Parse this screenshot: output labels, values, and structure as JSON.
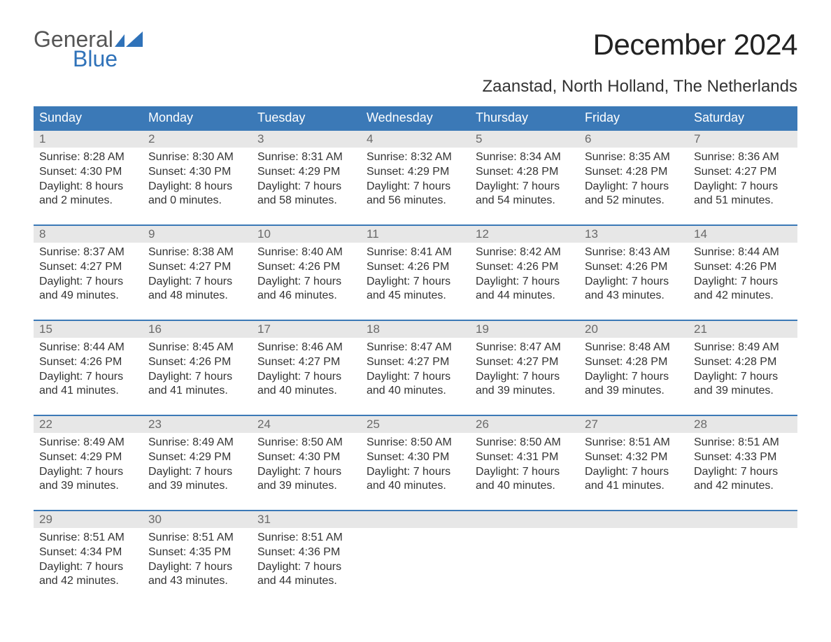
{
  "brand": {
    "line1": "General",
    "line2": "Blue"
  },
  "title": "December 2024",
  "location": "Zaanstad, North Holland, The Netherlands",
  "colors": {
    "header_bg": "#3b79b7",
    "header_text": "#ffffff",
    "daynum_bg": "#e7e7e7",
    "daynum_text": "#6a6a6a",
    "body_text": "#333333",
    "logo_gray": "#555555",
    "logo_blue": "#2f72b9",
    "week_border": "#3b79b7"
  },
  "weekdays": [
    "Sunday",
    "Monday",
    "Tuesday",
    "Wednesday",
    "Thursday",
    "Friday",
    "Saturday"
  ],
  "weeks": [
    [
      {
        "n": "1",
        "sunrise": "Sunrise: 8:28 AM",
        "sunset": "Sunset: 4:30 PM",
        "dl1": "Daylight: 8 hours",
        "dl2": "and 2 minutes."
      },
      {
        "n": "2",
        "sunrise": "Sunrise: 8:30 AM",
        "sunset": "Sunset: 4:30 PM",
        "dl1": "Daylight: 8 hours",
        "dl2": "and 0 minutes."
      },
      {
        "n": "3",
        "sunrise": "Sunrise: 8:31 AM",
        "sunset": "Sunset: 4:29 PM",
        "dl1": "Daylight: 7 hours",
        "dl2": "and 58 minutes."
      },
      {
        "n": "4",
        "sunrise": "Sunrise: 8:32 AM",
        "sunset": "Sunset: 4:29 PM",
        "dl1": "Daylight: 7 hours",
        "dl2": "and 56 minutes."
      },
      {
        "n": "5",
        "sunrise": "Sunrise: 8:34 AM",
        "sunset": "Sunset: 4:28 PM",
        "dl1": "Daylight: 7 hours",
        "dl2": "and 54 minutes."
      },
      {
        "n": "6",
        "sunrise": "Sunrise: 8:35 AM",
        "sunset": "Sunset: 4:28 PM",
        "dl1": "Daylight: 7 hours",
        "dl2": "and 52 minutes."
      },
      {
        "n": "7",
        "sunrise": "Sunrise: 8:36 AM",
        "sunset": "Sunset: 4:27 PM",
        "dl1": "Daylight: 7 hours",
        "dl2": "and 51 minutes."
      }
    ],
    [
      {
        "n": "8",
        "sunrise": "Sunrise: 8:37 AM",
        "sunset": "Sunset: 4:27 PM",
        "dl1": "Daylight: 7 hours",
        "dl2": "and 49 minutes."
      },
      {
        "n": "9",
        "sunrise": "Sunrise: 8:38 AM",
        "sunset": "Sunset: 4:27 PM",
        "dl1": "Daylight: 7 hours",
        "dl2": "and 48 minutes."
      },
      {
        "n": "10",
        "sunrise": "Sunrise: 8:40 AM",
        "sunset": "Sunset: 4:26 PM",
        "dl1": "Daylight: 7 hours",
        "dl2": "and 46 minutes."
      },
      {
        "n": "11",
        "sunrise": "Sunrise: 8:41 AM",
        "sunset": "Sunset: 4:26 PM",
        "dl1": "Daylight: 7 hours",
        "dl2": "and 45 minutes."
      },
      {
        "n": "12",
        "sunrise": "Sunrise: 8:42 AM",
        "sunset": "Sunset: 4:26 PM",
        "dl1": "Daylight: 7 hours",
        "dl2": "and 44 minutes."
      },
      {
        "n": "13",
        "sunrise": "Sunrise: 8:43 AM",
        "sunset": "Sunset: 4:26 PM",
        "dl1": "Daylight: 7 hours",
        "dl2": "and 43 minutes."
      },
      {
        "n": "14",
        "sunrise": "Sunrise: 8:44 AM",
        "sunset": "Sunset: 4:26 PM",
        "dl1": "Daylight: 7 hours",
        "dl2": "and 42 minutes."
      }
    ],
    [
      {
        "n": "15",
        "sunrise": "Sunrise: 8:44 AM",
        "sunset": "Sunset: 4:26 PM",
        "dl1": "Daylight: 7 hours",
        "dl2": "and 41 minutes."
      },
      {
        "n": "16",
        "sunrise": "Sunrise: 8:45 AM",
        "sunset": "Sunset: 4:26 PM",
        "dl1": "Daylight: 7 hours",
        "dl2": "and 41 minutes."
      },
      {
        "n": "17",
        "sunrise": "Sunrise: 8:46 AM",
        "sunset": "Sunset: 4:27 PM",
        "dl1": "Daylight: 7 hours",
        "dl2": "and 40 minutes."
      },
      {
        "n": "18",
        "sunrise": "Sunrise: 8:47 AM",
        "sunset": "Sunset: 4:27 PM",
        "dl1": "Daylight: 7 hours",
        "dl2": "and 40 minutes."
      },
      {
        "n": "19",
        "sunrise": "Sunrise: 8:47 AM",
        "sunset": "Sunset: 4:27 PM",
        "dl1": "Daylight: 7 hours",
        "dl2": "and 39 minutes."
      },
      {
        "n": "20",
        "sunrise": "Sunrise: 8:48 AM",
        "sunset": "Sunset: 4:28 PM",
        "dl1": "Daylight: 7 hours",
        "dl2": "and 39 minutes."
      },
      {
        "n": "21",
        "sunrise": "Sunrise: 8:49 AM",
        "sunset": "Sunset: 4:28 PM",
        "dl1": "Daylight: 7 hours",
        "dl2": "and 39 minutes."
      }
    ],
    [
      {
        "n": "22",
        "sunrise": "Sunrise: 8:49 AM",
        "sunset": "Sunset: 4:29 PM",
        "dl1": "Daylight: 7 hours",
        "dl2": "and 39 minutes."
      },
      {
        "n": "23",
        "sunrise": "Sunrise: 8:49 AM",
        "sunset": "Sunset: 4:29 PM",
        "dl1": "Daylight: 7 hours",
        "dl2": "and 39 minutes."
      },
      {
        "n": "24",
        "sunrise": "Sunrise: 8:50 AM",
        "sunset": "Sunset: 4:30 PM",
        "dl1": "Daylight: 7 hours",
        "dl2": "and 39 minutes."
      },
      {
        "n": "25",
        "sunrise": "Sunrise: 8:50 AM",
        "sunset": "Sunset: 4:30 PM",
        "dl1": "Daylight: 7 hours",
        "dl2": "and 40 minutes."
      },
      {
        "n": "26",
        "sunrise": "Sunrise: 8:50 AM",
        "sunset": "Sunset: 4:31 PM",
        "dl1": "Daylight: 7 hours",
        "dl2": "and 40 minutes."
      },
      {
        "n": "27",
        "sunrise": "Sunrise: 8:51 AM",
        "sunset": "Sunset: 4:32 PM",
        "dl1": "Daylight: 7 hours",
        "dl2": "and 41 minutes."
      },
      {
        "n": "28",
        "sunrise": "Sunrise: 8:51 AM",
        "sunset": "Sunset: 4:33 PM",
        "dl1": "Daylight: 7 hours",
        "dl2": "and 42 minutes."
      }
    ],
    [
      {
        "n": "29",
        "sunrise": "Sunrise: 8:51 AM",
        "sunset": "Sunset: 4:34 PM",
        "dl1": "Daylight: 7 hours",
        "dl2": "and 42 minutes."
      },
      {
        "n": "30",
        "sunrise": "Sunrise: 8:51 AM",
        "sunset": "Sunset: 4:35 PM",
        "dl1": "Daylight: 7 hours",
        "dl2": "and 43 minutes."
      },
      {
        "n": "31",
        "sunrise": "Sunrise: 8:51 AM",
        "sunset": "Sunset: 4:36 PM",
        "dl1": "Daylight: 7 hours",
        "dl2": "and 44 minutes."
      },
      null,
      null,
      null,
      null
    ]
  ]
}
